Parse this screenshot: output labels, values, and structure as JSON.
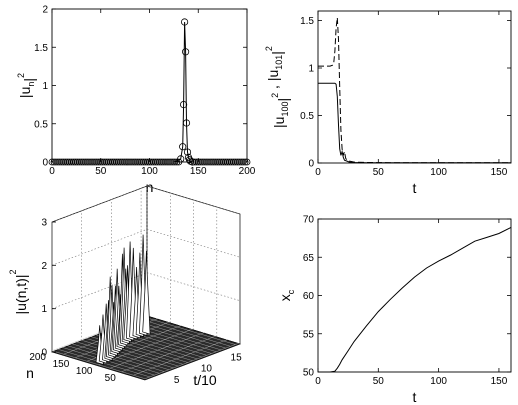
{
  "chart_data": [
    {
      "type": "scatter",
      "panel": "top-left",
      "xlabel": "n",
      "ylabel": "|u_n|^2",
      "xlim": [
        0,
        200
      ],
      "ylim": [
        0,
        2
      ],
      "xticks": [
        0,
        50,
        100,
        150,
        200
      ],
      "yticks": [
        0,
        0.5,
        1,
        1.5,
        2
      ],
      "marker": "circle",
      "line": "solid",
      "series": [
        {
          "x": [
            0,
            4,
            8,
            12,
            16,
            20,
            24,
            28,
            32,
            36,
            40,
            44,
            48,
            52,
            56,
            60,
            64,
            68,
            72,
            76,
            80,
            84,
            88,
            92,
            96,
            100,
            104,
            108,
            112,
            116,
            120,
            124,
            128,
            132,
            134,
            135,
            136,
            137,
            138,
            139,
            140,
            141,
            142,
            144,
            148,
            152,
            156,
            160,
            164,
            168,
            172,
            176,
            180,
            184,
            188,
            192,
            196,
            200
          ],
          "y": [
            0,
            0,
            0,
            0,
            0,
            0,
            0,
            0,
            0,
            0,
            0,
            0,
            0,
            0,
            0,
            0,
            0,
            0,
            0,
            0,
            0,
            0,
            0,
            0,
            0,
            0,
            0,
            0,
            0,
            0,
            0,
            0,
            0.01,
            0.04,
            0.2,
            0.75,
            1.83,
            1.44,
            0.51,
            0.13,
            0.06,
            0.03,
            0.01,
            0,
            0,
            0,
            0,
            0,
            0,
            0,
            0,
            0,
            0,
            0,
            0,
            0,
            0,
            0
          ]
        }
      ]
    },
    {
      "type": "line",
      "panel": "top-right",
      "xlabel": "t",
      "ylabel": "|u_100|^2 , |u_101|^2",
      "xlim": [
        0,
        160
      ],
      "ylim": [
        0,
        1.6
      ],
      "xticks": [
        0,
        50,
        100,
        150
      ],
      "yticks": [
        0,
        0.5,
        1,
        1.5
      ],
      "series": [
        {
          "style": "solid",
          "x": [
            0,
            14,
            15,
            16,
            17,
            18,
            19,
            20,
            21,
            22,
            24,
            26,
            30,
            40,
            60,
            100,
            160
          ],
          "y": [
            0.84,
            0.84,
            0.83,
            0.7,
            0.4,
            0.15,
            0.08,
            0.12,
            0.06,
            0.03,
            0.02,
            0.01,
            0.005,
            0.003,
            0.002,
            0.002,
            0.002
          ]
        },
        {
          "style": "dashed",
          "x": [
            0,
            10,
            12,
            13,
            14,
            15,
            16,
            17,
            18,
            19,
            20,
            21,
            22,
            23,
            24,
            26,
            30,
            40,
            60,
            100,
            160
          ],
          "y": [
            1.02,
            1.02,
            1.03,
            1.05,
            1.18,
            1.42,
            1.53,
            1.3,
            0.8,
            0.35,
            0.15,
            0.08,
            0.12,
            0.05,
            0.03,
            0.02,
            0.01,
            0.005,
            0.003,
            0.002,
            0.002
          ]
        }
      ]
    },
    {
      "type": "surface3d",
      "panel": "bottom-left",
      "xlabel": "t/10",
      "ylabel": "n",
      "zlabel": "|u(n,t)|^2",
      "xlim": [
        0,
        16
      ],
      "ylim": [
        0,
        200
      ],
      "zlim": [
        0,
        3
      ],
      "xticks": [
        5,
        10,
        15
      ],
      "yticks": [
        50,
        100,
        150,
        200
      ],
      "zticks": [
        0,
        1,
        2,
        3
      ]
    },
    {
      "type": "line",
      "panel": "bottom-right",
      "xlabel": "t",
      "ylabel": "x_c",
      "xlim": [
        0,
        160
      ],
      "ylim": [
        50,
        70
      ],
      "xticks": [
        0,
        50,
        100,
        150
      ],
      "yticks": [
        50,
        55,
        60,
        65,
        70
      ],
      "series": [
        {
          "x": [
            0,
            10,
            14,
            16,
            18,
            20,
            25,
            30,
            40,
            50,
            60,
            70,
            80,
            90,
            100,
            110,
            120,
            130,
            140,
            150,
            160
          ],
          "y": [
            50,
            50,
            50.1,
            50.5,
            51,
            51.6,
            52.8,
            54,
            56,
            57.9,
            59.5,
            61,
            62.4,
            63.6,
            64.5,
            65.3,
            66.2,
            67.1,
            67.6,
            68.1,
            68.9
          ]
        }
      ]
    }
  ]
}
